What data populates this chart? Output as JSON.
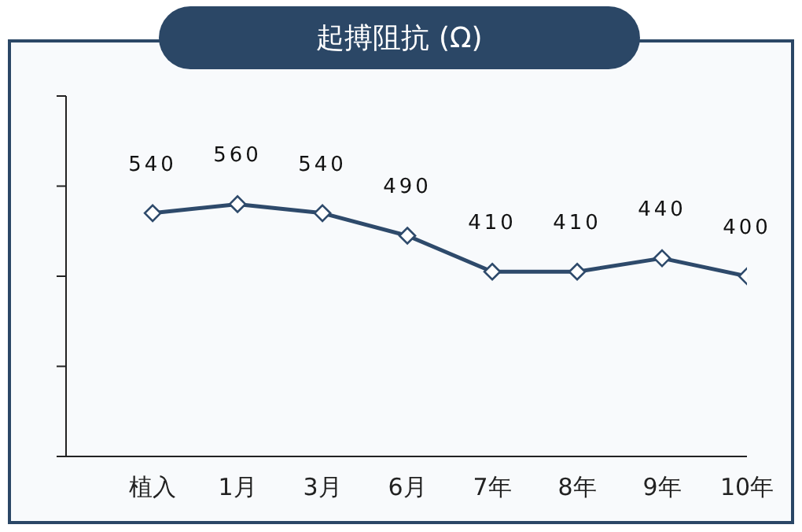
{
  "chart_data": {
    "type": "line",
    "title": "起搏阻抗 (Ω)",
    "categories": [
      "植入",
      "1月",
      "3月",
      "6月",
      "7年",
      "8年",
      "9年",
      "10年"
    ],
    "series": [
      {
        "color": "#2e4a6b",
        "values": [
          540,
          560,
          540,
          490,
          410,
          410,
          440,
          400
        ]
      }
    ],
    "ylim": [
      0,
      800
    ],
    "yticks": [
      {
        "value": 0,
        "label": null
      },
      {
        "value": 200,
        "label": null
      },
      {
        "value": 400,
        "label": null
      },
      {
        "value": 600,
        "label": null
      },
      {
        "value": 800,
        "label": null
      }
    ],
    "tick_labels": "x",
    "data_labels": true,
    "marker": "diamond",
    "line_style": "solid",
    "grid": false,
    "legend": false
  }
}
